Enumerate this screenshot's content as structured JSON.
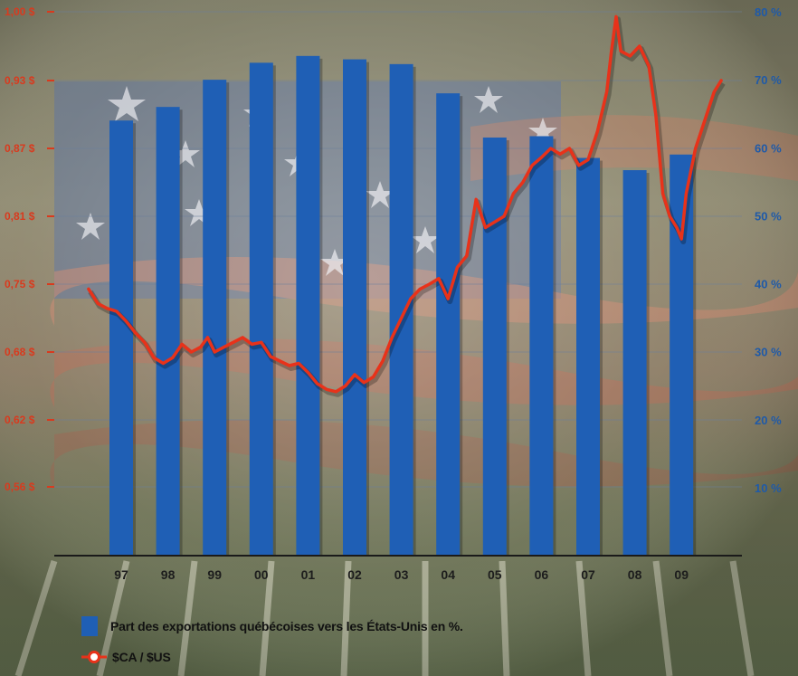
{
  "chart_data": {
    "type": "bar",
    "categories": [
      "97",
      "98",
      "99",
      "00",
      "01",
      "02",
      "03",
      "04",
      "05",
      "06",
      "07",
      "08",
      "09"
    ],
    "series": [
      {
        "name": "Part des exportations québécoises vers les États-Unis en %.",
        "axis": "right",
        "type": "bar",
        "color": "#1f5fb5",
        "values": [
          64,
          66,
          70,
          72.5,
          73.5,
          73,
          72.3,
          68,
          61.5,
          61.7,
          58.5,
          56.7,
          59
        ]
      },
      {
        "name": "$CA / $US",
        "axis": "left",
        "type": "line",
        "color": "#e8321a",
        "x": [
          1996.3,
          1996.5,
          1996.7,
          1996.9,
          1997.1,
          1997.3,
          1997.5,
          1997.7,
          1997.9,
          1998.1,
          1998.3,
          1998.5,
          1998.7,
          1998.85,
          1999.0,
          1999.2,
          1999.4,
          1999.6,
          1999.8,
          2000.0,
          2000.2,
          2000.4,
          2000.6,
          2000.8,
          2001.0,
          2001.2,
          2001.4,
          2001.6,
          2001.8,
          2002.0,
          2002.2,
          2002.4,
          2002.6,
          2002.8,
          2003.0,
          2003.2,
          2003.4,
          2003.6,
          2003.8,
          2004.0,
          2004.2,
          2004.4,
          2004.6,
          2004.8,
          2005.0,
          2005.2,
          2005.4,
          2005.6,
          2005.8,
          2006.0,
          2006.2,
          2006.4,
          2006.6,
          2006.8,
          2007.0,
          2007.2,
          2007.4,
          2007.5,
          2007.6,
          2007.7,
          2007.9,
          2008.1,
          2008.3,
          2008.45,
          2008.6,
          2008.75,
          2008.9,
          2009.0,
          2009.1,
          2009.3,
          2009.5,
          2009.7,
          2009.85
        ],
        "values": [
          0.745,
          0.73,
          0.725,
          0.722,
          0.712,
          0.7,
          0.69,
          0.675,
          0.67,
          0.675,
          0.688,
          0.68,
          0.685,
          0.695,
          0.68,
          0.685,
          0.69,
          0.695,
          0.688,
          0.69,
          0.676,
          0.672,
          0.668,
          0.67,
          0.662,
          0.652,
          0.647,
          0.645,
          0.65,
          0.66,
          0.653,
          0.658,
          0.672,
          0.695,
          0.715,
          0.735,
          0.745,
          0.75,
          0.755,
          0.735,
          0.765,
          0.775,
          0.825,
          0.8,
          0.805,
          0.81,
          0.83,
          0.84,
          0.855,
          0.862,
          0.87,
          0.865,
          0.87,
          0.855,
          0.86,
          0.885,
          0.92,
          0.96,
          0.995,
          0.96,
          0.955,
          0.965,
          0.945,
          0.9,
          0.83,
          0.81,
          0.8,
          0.79,
          0.83,
          0.87,
          0.895,
          0.92,
          0.93
        ]
      }
    ],
    "y_left": {
      "ticks": [
        0.56,
        0.62,
        0.68,
        0.75,
        0.81,
        0.87,
        0.93,
        1.0
      ],
      "labels": [
        "0,56 $",
        "0,62 $",
        "0,68 $",
        "0,75 $",
        "0,81 $",
        "0,87 $",
        "0,93 $",
        "1,00 $"
      ],
      "color": "#d93a1e"
    },
    "y_right": {
      "ticks": [
        10,
        20,
        30,
        40,
        50,
        60,
        70,
        80
      ],
      "labels": [
        "10 %",
        "20 %",
        "30 %",
        "40 %",
        "50 %",
        "60 %",
        "70 %",
        "80 %"
      ],
      "ylim": [
        0,
        80
      ],
      "color": "#1f5aa8"
    },
    "grid": true,
    "legend_position": "bottom-left",
    "title": "",
    "xlabel": "",
    "ylabel": ""
  }
}
